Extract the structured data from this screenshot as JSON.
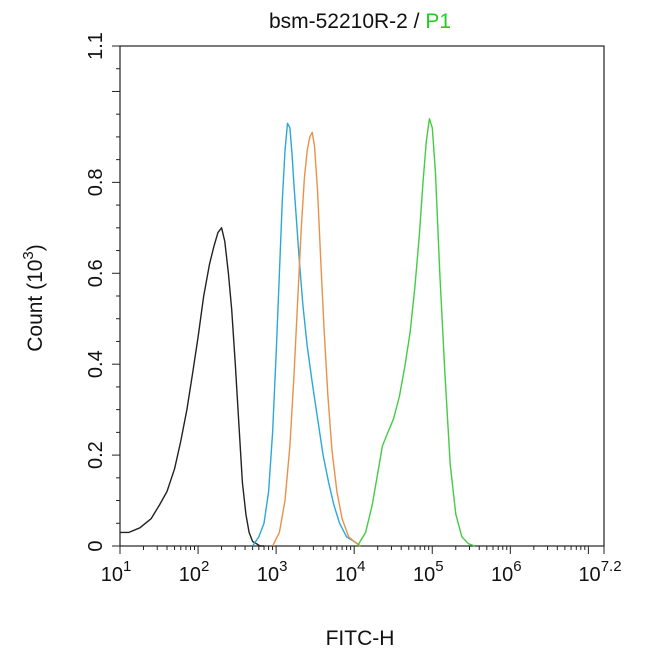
{
  "chart_data": {
    "type": "line",
    "title": {
      "main": "bsm-52210R-2",
      "separator": " / ",
      "gate": "P1",
      "gate_color": "#22cc22"
    },
    "xlabel": "FITC-H",
    "ylabel": "Count (10",
    "ylabel_exp": "3",
    "ylabel_close": ")",
    "x_scale": "log",
    "xlim": [
      10,
      15848931.9
    ],
    "ylim": [
      0,
      1.1
    ],
    "x_ticks": [
      {
        "base": "10",
        "exp": "1",
        "value": 10
      },
      {
        "base": "10",
        "exp": "2",
        "value": 100
      },
      {
        "base": "10",
        "exp": "3",
        "value": 1000
      },
      {
        "base": "10",
        "exp": "4",
        "value": 10000
      },
      {
        "base": "10",
        "exp": "5",
        "value": 100000
      },
      {
        "base": "10",
        "exp": "6",
        "value": 1000000
      },
      {
        "base": "10",
        "exp": "7.2",
        "value": 15848931.9
      }
    ],
    "y_ticks": [
      {
        "label": "0",
        "value": 0
      },
      {
        "label": "0.2",
        "value": 0.2
      },
      {
        "label": "0.4",
        "value": 0.4
      },
      {
        "label": "0.6",
        "value": 0.6
      },
      {
        "label": "0.8",
        "value": 0.8
      },
      {
        "label": "1.1",
        "value": 1.1
      }
    ],
    "grid": false,
    "series": [
      {
        "color": "#222222",
        "x": [
          10,
          13,
          18,
          25,
          32,
          40,
          50,
          60,
          72,
          85,
          100,
          118,
          140,
          160,
          180,
          200,
          220,
          245,
          270,
          300,
          335,
          370,
          410,
          450,
          500,
          560,
          620,
          700
        ],
        "y": [
          0.03,
          0.03,
          0.04,
          0.06,
          0.09,
          0.12,
          0.17,
          0.23,
          0.3,
          0.38,
          0.46,
          0.55,
          0.62,
          0.66,
          0.69,
          0.7,
          0.67,
          0.6,
          0.52,
          0.4,
          0.26,
          0.14,
          0.07,
          0.03,
          0.01,
          0.005,
          0.0,
          0.0
        ]
      },
      {
        "color": "#2aa8d8",
        "x": [
          500,
          600,
          700,
          800,
          900,
          1000,
          1100,
          1200,
          1300,
          1400,
          1500,
          1600,
          1700,
          1850,
          2000,
          2200,
          2500,
          2900,
          3400,
          4000,
          4700,
          5500,
          6500,
          8000,
          10000,
          12000
        ],
        "y": [
          0.0,
          0.02,
          0.05,
          0.12,
          0.25,
          0.42,
          0.6,
          0.76,
          0.87,
          0.93,
          0.92,
          0.86,
          0.79,
          0.7,
          0.62,
          0.53,
          0.44,
          0.36,
          0.28,
          0.2,
          0.14,
          0.09,
          0.05,
          0.02,
          0.01,
          0.0
        ]
      },
      {
        "color": "#e8914a",
        "x": [
          900,
          1100,
          1300,
          1500,
          1700,
          1900,
          2100,
          2300,
          2500,
          2700,
          2900,
          3100,
          3400,
          3700,
          4100,
          4600,
          5200,
          6000,
          7000,
          8500,
          10000,
          12000
        ],
        "y": [
          0.0,
          0.03,
          0.1,
          0.22,
          0.38,
          0.55,
          0.7,
          0.81,
          0.87,
          0.9,
          0.91,
          0.88,
          0.78,
          0.64,
          0.48,
          0.33,
          0.21,
          0.12,
          0.06,
          0.02,
          0.01,
          0.0
        ]
      },
      {
        "color": "#44cc44",
        "x": [
          11000,
          14000,
          17000,
          20000,
          23000,
          27000,
          32000,
          38000,
          45000,
          52000,
          60000,
          68000,
          76000,
          84000,
          92000,
          100000,
          110000,
          125000,
          145000,
          170000,
          200000,
          240000,
          290000,
          350000
        ],
        "y": [
          0.0,
          0.03,
          0.09,
          0.16,
          0.22,
          0.25,
          0.28,
          0.33,
          0.4,
          0.47,
          0.57,
          0.68,
          0.8,
          0.89,
          0.94,
          0.92,
          0.82,
          0.6,
          0.38,
          0.18,
          0.07,
          0.02,
          0.005,
          0.0
        ]
      }
    ]
  }
}
